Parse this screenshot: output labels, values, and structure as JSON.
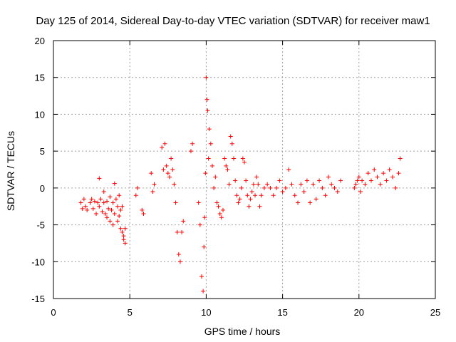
{
  "chart_data": {
    "type": "scatter",
    "title": "Day 125 of 2014, Sidereal Day-to-day VTEC variation (SDTVAR) for receiver maw1",
    "xlabel": "GPS time / hours",
    "ylabel": "SDTVAR / TECUs",
    "xlim": [
      0,
      25
    ],
    "ylim": [
      -15,
      20
    ],
    "xticks": [
      0,
      5,
      10,
      15,
      20,
      25
    ],
    "yticks": [
      -15,
      -10,
      -5,
      0,
      5,
      10,
      15,
      20
    ],
    "xtick_labels": [
      "0",
      "5",
      "10",
      "15",
      "20",
      "25"
    ],
    "ytick_labels": [
      "-15",
      "-10",
      "-5",
      "0",
      "5",
      "10",
      "15",
      "20"
    ],
    "grid": true,
    "marker": "+",
    "marker_color": "#ff0000",
    "series": [
      {
        "name": "SDTVAR",
        "x": [
          1.8,
          1.9,
          2.0,
          2.1,
          2.2,
          2.4,
          2.5,
          2.6,
          2.7,
          2.8,
          2.9,
          3.0,
          3.0,
          3.1,
          3.2,
          3.3,
          3.3,
          3.4,
          3.5,
          3.5,
          3.6,
          3.7,
          3.7,
          3.8,
          3.9,
          3.9,
          4.0,
          4.0,
          4.1,
          4.2,
          4.2,
          4.3,
          4.3,
          4.4,
          4.4,
          4.5,
          4.5,
          4.6,
          4.6,
          4.7,
          4.7,
          5.4,
          5.5,
          5.8,
          5.9,
          6.4,
          6.5,
          6.6,
          7.1,
          7.2,
          7.3,
          7.4,
          7.5,
          7.6,
          7.7,
          7.8,
          7.9,
          8.0,
          8.1,
          8.2,
          8.3,
          8.4,
          8.5,
          9.0,
          9.1,
          9.5,
          9.6,
          9.7,
          9.8,
          9.85,
          9.9,
          9.95,
          10.0,
          10.05,
          10.1,
          10.15,
          10.2,
          10.3,
          10.4,
          10.5,
          10.6,
          10.7,
          10.8,
          10.9,
          11.0,
          11.1,
          11.2,
          11.3,
          11.4,
          11.5,
          11.6,
          11.7,
          11.8,
          11.9,
          12.0,
          12.1,
          12.2,
          12.3,
          12.4,
          12.5,
          12.6,
          12.7,
          12.8,
          12.9,
          13.0,
          13.1,
          13.2,
          13.3,
          13.4,
          13.5,
          13.6,
          13.8,
          14.0,
          14.2,
          14.4,
          14.6,
          14.8,
          15.0,
          15.2,
          15.4,
          15.6,
          15.8,
          16.0,
          16.2,
          16.4,
          16.6,
          16.8,
          17.0,
          17.2,
          17.4,
          17.6,
          17.8,
          18.0,
          18.2,
          18.4,
          18.6,
          18.8,
          19.7,
          19.8,
          19.9,
          20.0,
          20.1,
          20.2,
          20.4,
          20.6,
          20.8,
          21.0,
          21.2,
          21.4,
          21.6,
          21.8,
          22.0,
          22.2,
          22.4,
          22.6,
          22.7
        ],
        "y": [
          -2.0,
          -2.8,
          -1.5,
          -2.5,
          -3.0,
          -2.0,
          -1.5,
          -2.8,
          -1.8,
          -3.5,
          -2.0,
          1.3,
          -2.5,
          -1.5,
          -3.2,
          -2.0,
          -0.5,
          -3.5,
          -1.8,
          -4.0,
          -2.8,
          -1.2,
          -4.5,
          -3.0,
          -2.0,
          -5.0,
          0.6,
          -3.5,
          -1.5,
          -4.5,
          -2.5,
          -3.8,
          -1.0,
          -5.5,
          -3.0,
          -6.0,
          -2.5,
          -7.0,
          -6.5,
          -7.5,
          -5.5,
          -1.0,
          0.0,
          -3.0,
          -3.5,
          2.0,
          -0.5,
          0.5,
          5.5,
          2.5,
          6.0,
          3.0,
          2.0,
          1.5,
          4.0,
          2.5,
          0.5,
          -2.0,
          -6.0,
          -9.0,
          -10.0,
          -6.0,
          -4.5,
          5.0,
          6.0,
          -2.0,
          -5.0,
          -12.0,
          -14.0,
          -8.0,
          -4.0,
          2.0,
          15.0,
          12.0,
          10.5,
          4.0,
          8.0,
          6.0,
          3.0,
          0.0,
          1.5,
          -2.0,
          -2.5,
          -3.5,
          -4.0,
          -3.0,
          4.0,
          3.0,
          2.5,
          0.5,
          7.0,
          6.0,
          4.0,
          1.0,
          -1.0,
          -2.0,
          -1.5,
          0.0,
          4.0,
          3.5,
          1.0,
          -1.0,
          -2.5,
          -1.5,
          -0.5,
          0.5,
          -1.0,
          1.5,
          0.5,
          -2.5,
          -1.0,
          0.0,
          0.5,
          0.0,
          -1.0,
          0.0,
          1.0,
          -0.5,
          0.0,
          2.5,
          0.5,
          -1.0,
          -2.0,
          0.5,
          -0.5,
          1.0,
          -2.0,
          0.5,
          -1.5,
          1.0,
          0.0,
          -1.0,
          1.5,
          0.5,
          0.0,
          -0.5,
          1.0,
          0.0,
          0.5,
          1.0,
          1.5,
          -0.5,
          1.0,
          0.5,
          2.0,
          1.0,
          2.5,
          1.5,
          0.5,
          2.0,
          1.0,
          2.5,
          1.5,
          0.0,
          2.0,
          4.0
        ]
      }
    ]
  }
}
